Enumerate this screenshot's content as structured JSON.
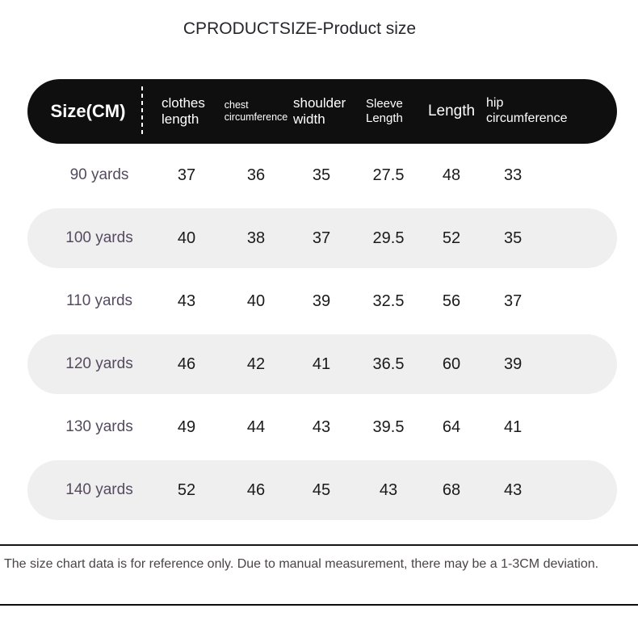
{
  "title": "CPRODUCTSIZE-Product size",
  "chart_data": {
    "type": "table",
    "title": "CPRODUCTSIZE-Product size",
    "columns": [
      "Size(CM)",
      "clothes length",
      "chest circumference",
      "shoulder width",
      "Sleeve Length",
      "Length",
      "hip circumference"
    ],
    "rows": [
      [
        "90 yards",
        37,
        36,
        35,
        27.5,
        48,
        33
      ],
      [
        "100 yards",
        40,
        38,
        37,
        29.5,
        52,
        35
      ],
      [
        "110 yards",
        43,
        40,
        39,
        32.5,
        56,
        37
      ],
      [
        "120 yards",
        46,
        42,
        41,
        36.5,
        60,
        39
      ],
      [
        "130 yards",
        49,
        44,
        43,
        39.5,
        64,
        41
      ],
      [
        "140 yards",
        52,
        46,
        45,
        43,
        68,
        43
      ]
    ],
    "note": "The size chart data is for reference only. Due to manual measurement, there may be a 1-3CM deviation."
  },
  "footer": {
    "note": "The size chart data is for reference only. Due to manual measurement, there may be a 1-3CM deviation."
  },
  "colors": {
    "header_bg": "#0f0f0f",
    "header_text": "#ffffff",
    "stripe_bg": "#efefef",
    "size_label_text": "#554a5f",
    "value_text": "#1a1a1a",
    "note_text": "#4b4546"
  }
}
